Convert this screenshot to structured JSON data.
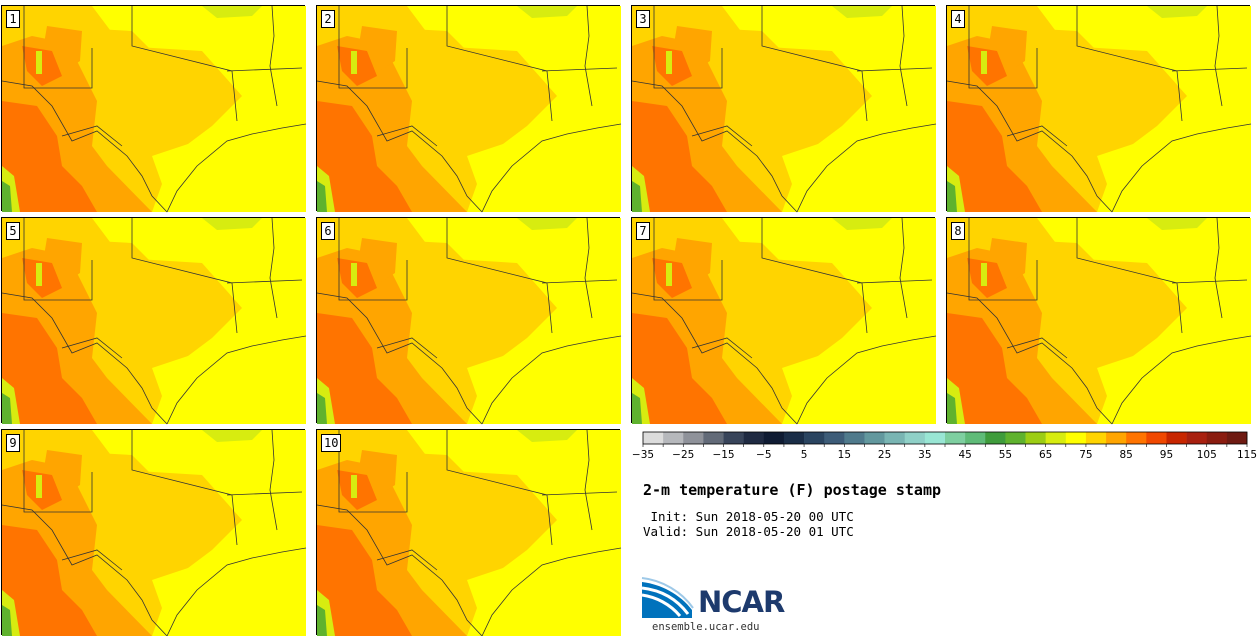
{
  "panels": [
    {
      "label": "1"
    },
    {
      "label": "2"
    },
    {
      "label": "3"
    },
    {
      "label": "4"
    },
    {
      "label": "5"
    },
    {
      "label": "6"
    },
    {
      "label": "7"
    },
    {
      "label": "8"
    },
    {
      "label": "9"
    },
    {
      "label": "10"
    }
  ],
  "colorbar": {
    "tick_labels": [
      "−35",
      "−25",
      "−15",
      "−5",
      "5",
      "15",
      "25",
      "35",
      "45",
      "55",
      "65",
      "75",
      "85",
      "95",
      "105",
      "115"
    ],
    "colors": [
      "#dcdcdc",
      "#b6b8bc",
      "#8f929a",
      "#626a78",
      "#38445a",
      "#1f2a42",
      "#0f1b33",
      "#1a2d47",
      "#2a4460",
      "#3d5c78",
      "#4f7a8c",
      "#62989e",
      "#79b5b3",
      "#8fd0c7",
      "#99e6d4",
      "#7ecfa0",
      "#5fbb78",
      "#3f9c3c",
      "#5fb22e",
      "#9ccd14",
      "#d7ec10",
      "#ffff00",
      "#ffd400",
      "#ffa500",
      "#ff7400",
      "#f04800",
      "#c82600",
      "#a82010",
      "#8a1c10",
      "#6e1a12"
    ]
  },
  "title": "2-m temperature (F) postage stamp",
  "init_line": " Init: Sun 2018-05-20 00 UTC",
  "valid_line": "Valid: Sun 2018-05-20 01 UTC",
  "logo_text": "NCAR",
  "url": "ensemble.ucar.edu"
}
